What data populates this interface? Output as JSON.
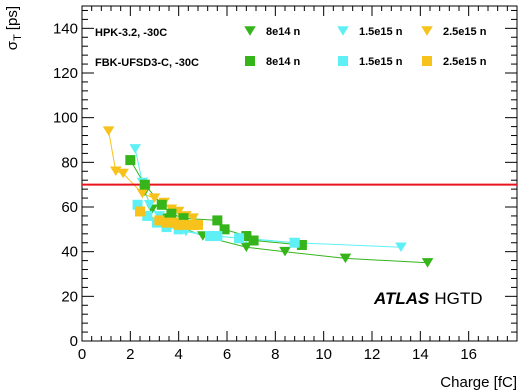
{
  "chart_data": {
    "type": "scatter",
    "xlabel": "Charge [fC]",
    "ylabel_main": "σ",
    "ylabel_sub": "T",
    "ylabel_unit": "[ps]",
    "xlim": [
      0,
      18
    ],
    "ylim": [
      0,
      150
    ],
    "xticks": [
      0,
      2,
      4,
      6,
      8,
      10,
      12,
      14,
      16
    ],
    "yticks": [
      0,
      20,
      40,
      60,
      80,
      100,
      120,
      140
    ],
    "grid": false,
    "legend_placement": "top",
    "reference_line": {
      "y": 70,
      "color": "#e8141d"
    },
    "annotation": {
      "bold": "ATLAS",
      "plain": "HGTD"
    },
    "legend_groups": [
      "HPK-3.2, -30C",
      "FBK-UFSD3-C, -30C"
    ],
    "series": [
      {
        "name": "8e14 n",
        "group": "HPK-3.2, -30C",
        "marker": "triangle-down",
        "color": "#35b51a",
        "x": [
          2.6,
          2.9,
          3.4,
          4.1,
          5.0,
          6.8,
          8.4,
          10.9,
          14.3
        ],
        "y": [
          67,
          59,
          55,
          51,
          47,
          42,
          40,
          37,
          35
        ]
      },
      {
        "name": "1.5e15 n",
        "group": "HPK-3.2, -30C",
        "marker": "triangle-down",
        "color": "#5ff0f5",
        "x": [
          2.2,
          2.5,
          2.8,
          3.2,
          3.7,
          4.3,
          5.3,
          6.8,
          8.8,
          13.2
        ],
        "y": [
          86,
          71,
          61,
          56,
          53,
          49,
          47,
          46,
          44,
          42
        ]
      },
      {
        "name": "2.5e15 n",
        "group": "HPK-3.2, -30C",
        "marker": "triangle-down",
        "color": "#f7c21b",
        "x": [
          1.1,
          1.4,
          1.7,
          2.5,
          3.0,
          3.4,
          3.7,
          4.0,
          4.3,
          4.6
        ],
        "y": [
          94,
          76,
          75,
          66,
          64,
          62,
          59,
          58,
          56,
          55
        ]
      },
      {
        "name": "8e14 n",
        "group": "FBK-UFSD3-C, -30C",
        "marker": "square",
        "color": "#35b51a",
        "x": [
          2.0,
          2.6,
          3.3,
          3.7,
          4.2,
          5.6,
          5.9,
          6.8,
          7.1,
          9.1
        ],
        "y": [
          81,
          70,
          61,
          57,
          55,
          54,
          50,
          47,
          45,
          43
        ]
      },
      {
        "name": "1.5e15 n",
        "group": "FBK-UFSD3-C, -30C",
        "marker": "square",
        "color": "#5ff0f5",
        "x": [
          2.3,
          2.7,
          3.1,
          3.5,
          4.0,
          5.3,
          5.6,
          6.5,
          8.8
        ],
        "y": [
          61,
          56,
          53,
          51,
          50,
          47,
          47,
          46,
          44
        ]
      },
      {
        "name": "2.5e15 n",
        "group": "FBK-UFSD3-C, -30C",
        "marker": "square",
        "color": "#f7c21b",
        "x": [
          2.4,
          3.2,
          3.5,
          3.8,
          4.0,
          4.3,
          4.6,
          4.8
        ],
        "y": [
          58,
          54,
          53,
          53,
          52,
          52,
          52,
          52
        ]
      }
    ]
  }
}
